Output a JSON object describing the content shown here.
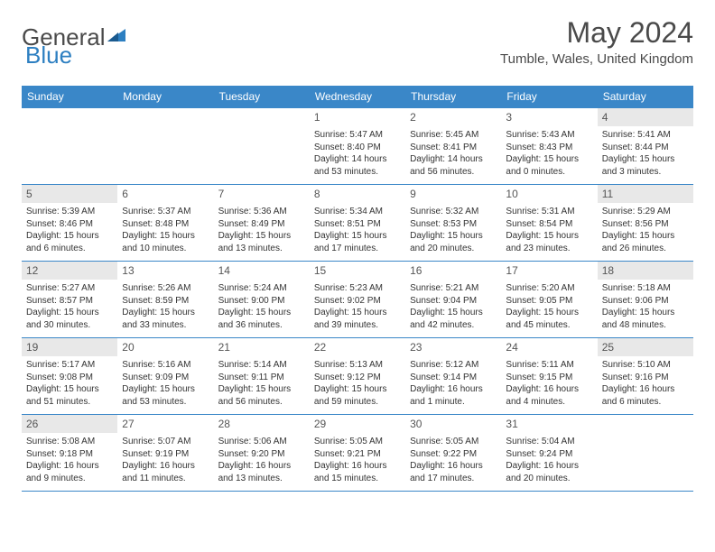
{
  "logo": {
    "text1": "General",
    "text2": "Blue"
  },
  "title": "May 2024",
  "location": "Tumble, Wales, United Kingdom",
  "colors": {
    "header_bg": "#3a87c8",
    "header_text": "#ffffff",
    "border": "#3a87c8",
    "weekend_bg": "#e8e8e8",
    "text": "#333333",
    "logo_gray": "#4a4a4a",
    "logo_blue": "#2d7fc1"
  },
  "weekdays": [
    "Sunday",
    "Monday",
    "Tuesday",
    "Wednesday",
    "Thursday",
    "Friday",
    "Saturday"
  ],
  "weeks": [
    [
      null,
      null,
      null,
      {
        "d": "1",
        "sr": "5:47 AM",
        "ss": "8:40 PM",
        "dl": "14 hours and 53 minutes."
      },
      {
        "d": "2",
        "sr": "5:45 AM",
        "ss": "8:41 PM",
        "dl": "14 hours and 56 minutes."
      },
      {
        "d": "3",
        "sr": "5:43 AM",
        "ss": "8:43 PM",
        "dl": "15 hours and 0 minutes."
      },
      {
        "d": "4",
        "sr": "5:41 AM",
        "ss": "8:44 PM",
        "dl": "15 hours and 3 minutes."
      }
    ],
    [
      {
        "d": "5",
        "sr": "5:39 AM",
        "ss": "8:46 PM",
        "dl": "15 hours and 6 minutes."
      },
      {
        "d": "6",
        "sr": "5:37 AM",
        "ss": "8:48 PM",
        "dl": "15 hours and 10 minutes."
      },
      {
        "d": "7",
        "sr": "5:36 AM",
        "ss": "8:49 PM",
        "dl": "15 hours and 13 minutes."
      },
      {
        "d": "8",
        "sr": "5:34 AM",
        "ss": "8:51 PM",
        "dl": "15 hours and 17 minutes."
      },
      {
        "d": "9",
        "sr": "5:32 AM",
        "ss": "8:53 PM",
        "dl": "15 hours and 20 minutes."
      },
      {
        "d": "10",
        "sr": "5:31 AM",
        "ss": "8:54 PM",
        "dl": "15 hours and 23 minutes."
      },
      {
        "d": "11",
        "sr": "5:29 AM",
        "ss": "8:56 PM",
        "dl": "15 hours and 26 minutes."
      }
    ],
    [
      {
        "d": "12",
        "sr": "5:27 AM",
        "ss": "8:57 PM",
        "dl": "15 hours and 30 minutes."
      },
      {
        "d": "13",
        "sr": "5:26 AM",
        "ss": "8:59 PM",
        "dl": "15 hours and 33 minutes."
      },
      {
        "d": "14",
        "sr": "5:24 AM",
        "ss": "9:00 PM",
        "dl": "15 hours and 36 minutes."
      },
      {
        "d": "15",
        "sr": "5:23 AM",
        "ss": "9:02 PM",
        "dl": "15 hours and 39 minutes."
      },
      {
        "d": "16",
        "sr": "5:21 AM",
        "ss": "9:04 PM",
        "dl": "15 hours and 42 minutes."
      },
      {
        "d": "17",
        "sr": "5:20 AM",
        "ss": "9:05 PM",
        "dl": "15 hours and 45 minutes."
      },
      {
        "d": "18",
        "sr": "5:18 AM",
        "ss": "9:06 PM",
        "dl": "15 hours and 48 minutes."
      }
    ],
    [
      {
        "d": "19",
        "sr": "5:17 AM",
        "ss": "9:08 PM",
        "dl": "15 hours and 51 minutes."
      },
      {
        "d": "20",
        "sr": "5:16 AM",
        "ss": "9:09 PM",
        "dl": "15 hours and 53 minutes."
      },
      {
        "d": "21",
        "sr": "5:14 AM",
        "ss": "9:11 PM",
        "dl": "15 hours and 56 minutes."
      },
      {
        "d": "22",
        "sr": "5:13 AM",
        "ss": "9:12 PM",
        "dl": "15 hours and 59 minutes."
      },
      {
        "d": "23",
        "sr": "5:12 AM",
        "ss": "9:14 PM",
        "dl": "16 hours and 1 minute."
      },
      {
        "d": "24",
        "sr": "5:11 AM",
        "ss": "9:15 PM",
        "dl": "16 hours and 4 minutes."
      },
      {
        "d": "25",
        "sr": "5:10 AM",
        "ss": "9:16 PM",
        "dl": "16 hours and 6 minutes."
      }
    ],
    [
      {
        "d": "26",
        "sr": "5:08 AM",
        "ss": "9:18 PM",
        "dl": "16 hours and 9 minutes."
      },
      {
        "d": "27",
        "sr": "5:07 AM",
        "ss": "9:19 PM",
        "dl": "16 hours and 11 minutes."
      },
      {
        "d": "28",
        "sr": "5:06 AM",
        "ss": "9:20 PM",
        "dl": "16 hours and 13 minutes."
      },
      {
        "d": "29",
        "sr": "5:05 AM",
        "ss": "9:21 PM",
        "dl": "16 hours and 15 minutes."
      },
      {
        "d": "30",
        "sr": "5:05 AM",
        "ss": "9:22 PM",
        "dl": "16 hours and 17 minutes."
      },
      {
        "d": "31",
        "sr": "5:04 AM",
        "ss": "9:24 PM",
        "dl": "16 hours and 20 minutes."
      },
      null
    ]
  ],
  "labels": {
    "sunrise": "Sunrise: ",
    "sunset": "Sunset: ",
    "daylight": "Daylight: "
  }
}
